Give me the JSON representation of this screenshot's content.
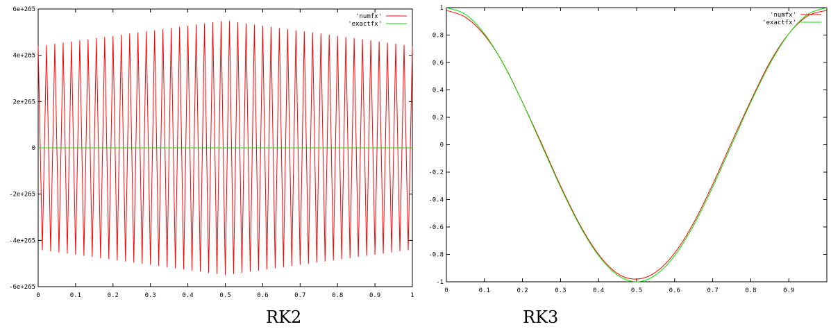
{
  "chart_data": [
    {
      "type": "line",
      "caption": "RK2",
      "xlim": [
        0,
        1
      ],
      "ylim": [
        -6e+265,
        6e+265
      ],
      "x_ticks": [
        0,
        0.1,
        0.2,
        0.3,
        0.4,
        0.5,
        0.6,
        0.7,
        0.8,
        0.9,
        1
      ],
      "x_tick_labels": [
        "0",
        "0.1",
        "0.2",
        "0.3",
        "0.4",
        "0.5",
        "0.6",
        "0.7",
        "0.8",
        "0.9",
        "1"
      ],
      "y_ticks": [
        -6e+265,
        -4e+265,
        -2e+265,
        0,
        2e+265,
        4e+265,
        6e+265
      ],
      "y_tick_labels": [
        "-6e+265",
        "-4e+265",
        "-2e+265",
        "0",
        "2e+265",
        "4e+265",
        "6e+265"
      ],
      "legend_position": "top-right",
      "series": [
        {
          "name": "'numfx'",
          "color": "#ff0000",
          "form": "alternating oscillation",
          "oscillation_count": 45,
          "envelope": {
            "x": [
              0,
              0.5,
              1
            ],
            "y": [
              4.4e+265,
              5.5e+265,
              4.4e+265
            ]
          }
        },
        {
          "name": "'exactfx'",
          "color": "#00dd00",
          "x": [
            0,
            1
          ],
          "y": [
            0,
            0
          ]
        }
      ]
    },
    {
      "type": "line",
      "caption": "RK3",
      "xlim": [
        0,
        1
      ],
      "ylim": [
        -1,
        1
      ],
      "x_ticks": [
        0,
        0.1,
        0.2,
        0.3,
        0.4,
        0.5,
        0.6,
        0.7,
        0.8,
        0.9
      ],
      "x_tick_labels": [
        "0",
        "0.1",
        "0.2",
        "0.3",
        "0.4",
        "0.5",
        "0.6",
        "0.7",
        "0.8",
        "0.9"
      ],
      "y_ticks": [
        -1,
        -0.8,
        -0.6,
        -0.4,
        -0.2,
        0,
        0.2,
        0.4,
        0.6,
        0.8,
        1
      ],
      "y_tick_labels": [
        "-1",
        "-0.8",
        "-0.6",
        "-0.4",
        "-0.2",
        "0",
        "0.2",
        "0.4",
        "0.6",
        "0.8",
        "1"
      ],
      "legend_position": "top-right",
      "series": [
        {
          "name": "'numfx'",
          "color": "#ff0000",
          "x": [
            0,
            0.05,
            0.1,
            0.15,
            0.2,
            0.25,
            0.3,
            0.35,
            0.4,
            0.45,
            0.5,
            0.55,
            0.6,
            0.65,
            0.7,
            0.75,
            0.8,
            0.85,
            0.9,
            0.95,
            1.0
          ],
          "y": [
            0.98,
            0.93,
            0.8,
            0.59,
            0.31,
            0.01,
            -0.3,
            -0.58,
            -0.8,
            -0.94,
            -0.98,
            -0.93,
            -0.79,
            -0.57,
            -0.29,
            0.02,
            0.32,
            0.6,
            0.81,
            0.94,
            0.98
          ]
        },
        {
          "name": "'exactfx'",
          "color": "#00dd00",
          "x": [
            0,
            0.05,
            0.1,
            0.15,
            0.2,
            0.25,
            0.3,
            0.35,
            0.4,
            0.45,
            0.5,
            0.55,
            0.6,
            0.65,
            0.7,
            0.75,
            0.8,
            0.85,
            0.9,
            0.95,
            1.0
          ],
          "y": [
            1.0,
            0.951,
            0.809,
            0.588,
            0.309,
            0.0,
            -0.309,
            -0.588,
            -0.809,
            -0.951,
            -1.0,
            -0.951,
            -0.809,
            -0.588,
            -0.309,
            0.0,
            0.309,
            0.588,
            0.809,
            0.951,
            1.0
          ]
        }
      ]
    }
  ]
}
